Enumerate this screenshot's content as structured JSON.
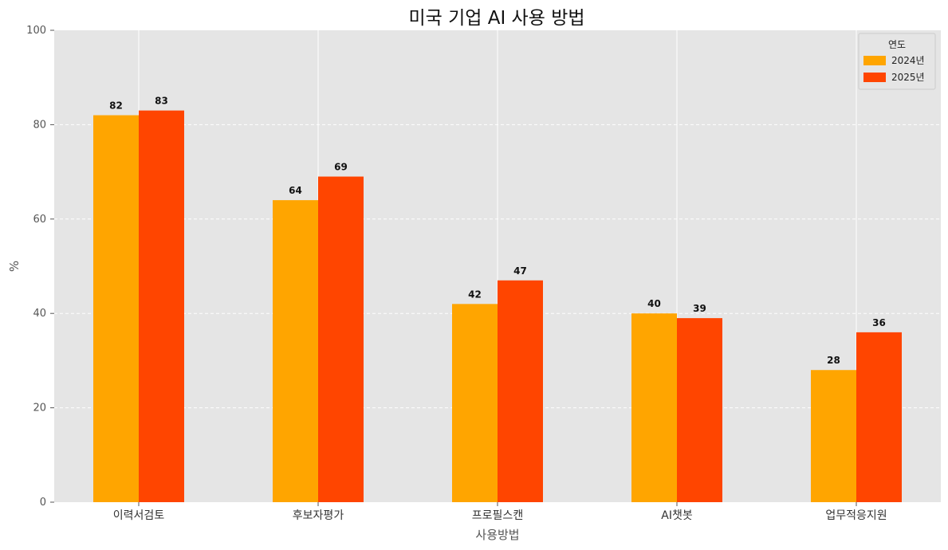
{
  "chart_data": {
    "type": "bar",
    "title": "미국 기업 AI 사용 방법",
    "xlabel": "사용방법",
    "ylabel": "%",
    "ylim": [
      0,
      100
    ],
    "yticks": [
      0,
      20,
      40,
      60,
      80,
      100
    ],
    "categories": [
      "이력서검토",
      "후보자평가",
      "프로필스캔",
      "AI챗봇",
      "업무적응지원"
    ],
    "series": [
      {
        "name": "2024년",
        "color": "#FFA500",
        "values": [
          82,
          64,
          42,
          40,
          28
        ]
      },
      {
        "name": "2025년",
        "color": "#FF4500",
        "values": [
          83,
          69,
          47,
          39,
          36
        ]
      }
    ],
    "legend": {
      "title": "연도",
      "position": "top-right"
    },
    "grid": true,
    "background": "#E5E5E5"
  }
}
